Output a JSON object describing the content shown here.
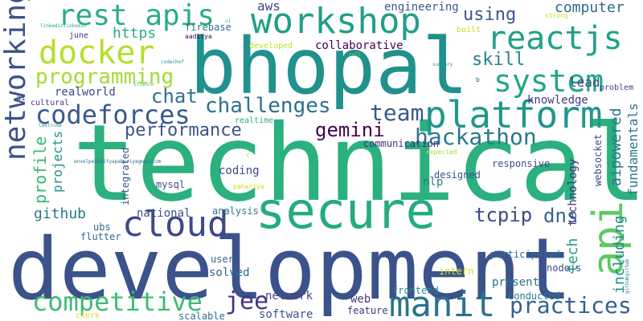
{
  "cloud": {
    "words": [
      {
        "text": "technical",
        "color": "#2bb07f"
      },
      {
        "text": "development",
        "color": "#3b528b"
      },
      {
        "text": "bhopal",
        "color": "#21918c"
      },
      {
        "text": "secure",
        "color": "#25ab82"
      },
      {
        "text": "workshop",
        "color": "#1f9f88"
      },
      {
        "text": "platform",
        "color": "#1f978b"
      },
      {
        "text": "manit",
        "color": "#2c728e"
      },
      {
        "text": "api",
        "color": "#5ec962"
      },
      {
        "text": "cloud",
        "color": "#3e4989"
      },
      {
        "text": "reactjs",
        "color": "#1fa188"
      },
      {
        "text": "codeforces",
        "color": "#38598c"
      },
      {
        "text": "competitive",
        "color": "#3dbc74"
      },
      {
        "text": "docker",
        "color": "#b5de2b"
      },
      {
        "text": "system",
        "color": "#22a785"
      },
      {
        "text": "rest apis",
        "color": "#29af7f"
      },
      {
        "text": "networking",
        "color": "#3b528b"
      },
      {
        "text": "hackathon",
        "color": "#2a788e"
      },
      {
        "text": "jee",
        "color": "#46337e"
      },
      {
        "text": "practices",
        "color": "#34618d"
      },
      {
        "text": "challenges",
        "color": "#2d708e"
      },
      {
        "text": "programming",
        "color": "#a5db36"
      },
      {
        "text": "performance",
        "color": "#3b528b"
      },
      {
        "text": "team",
        "color": "#375a8c"
      },
      {
        "text": "gemini",
        "color": "#440154"
      },
      {
        "text": "tcpip",
        "color": "#3e4989"
      },
      {
        "text": "dns",
        "color": "#32658e"
      },
      {
        "text": "skill",
        "color": "#26828e"
      },
      {
        "text": "using",
        "color": "#39568c"
      },
      {
        "text": "chat",
        "color": "#2c728e"
      },
      {
        "text": "https",
        "color": "#27ad81"
      },
      {
        "text": "computer",
        "color": "#31688e"
      },
      {
        "text": "engineering",
        "color": "#38588c"
      },
      {
        "text": "aws",
        "color": "#3f4788"
      },
      {
        "text": "lead",
        "color": "#3f4788"
      },
      {
        "text": "knowledge",
        "color": "#443a83"
      },
      {
        "text": "realworld",
        "color": "#3e4989"
      },
      {
        "text": "github",
        "color": "#2a788e"
      },
      {
        "text": "profile",
        "color": "#37b878"
      },
      {
        "text": "projects",
        "color": "#21918c"
      },
      {
        "text": "aipowered",
        "color": "#2c728e"
      },
      {
        "text": "fundamentals",
        "color": "#2a788e"
      },
      {
        "text": "including",
        "color": "#23898e"
      },
      {
        "text": "tech",
        "color": "#1f9f88"
      },
      {
        "text": "technology",
        "color": "#46307e"
      },
      {
        "text": "websocket",
        "color": "#3e4989"
      },
      {
        "text": "coding",
        "color": "#404688"
      },
      {
        "text": "mysql",
        "color": "#3b528b"
      },
      {
        "text": "national",
        "color": "#3b528b"
      },
      {
        "text": "analysis",
        "color": "#2a788e"
      },
      {
        "text": "communication",
        "color": "#46307e"
      },
      {
        "text": "collaborative",
        "color": "#440154"
      },
      {
        "text": "integrated",
        "color": "#39568c"
      },
      {
        "text": "designed",
        "color": "#3b528b"
      },
      {
        "text": "responsive",
        "color": "#3e4989"
      },
      {
        "text": "nlp",
        "color": "#287c8e"
      },
      {
        "text": "network",
        "color": "#3f4788"
      },
      {
        "text": "web",
        "color": "#453781"
      },
      {
        "text": "software",
        "color": "#3b528b"
      },
      {
        "text": "solved",
        "color": "#31688e"
      },
      {
        "text": "user",
        "color": "#31688e"
      },
      {
        "text": "present",
        "color": "#2c728e"
      },
      {
        "text": "frontend",
        "color": "#25858e"
      },
      {
        "text": "conducted",
        "color": "#2a788e"
      },
      {
        "text": "feature",
        "color": "#46337e"
      },
      {
        "text": "scalable",
        "color": "#2e6f8e"
      },
      {
        "text": "intern",
        "color": "#d8e219"
      },
      {
        "text": "participated",
        "color": "#31688e"
      },
      {
        "text": "nodejs",
        "color": "#3e4989"
      },
      {
        "text": "ubs",
        "color": "#31688e"
      },
      {
        "text": "flutter",
        "color": "#2c728e"
      },
      {
        "text": "realtime",
        "color": "#27ad81"
      },
      {
        "text": "firebase",
        "color": "#2e6f8e"
      },
      {
        "text": "june",
        "color": "#46337e"
      },
      {
        "text": "aaditya",
        "color": "#440154"
      },
      {
        "text": "developed",
        "color": "#c2df23"
      },
      {
        "text": "built",
        "color": "#c8e020"
      },
      {
        "text": "roll",
        "color": "#7ad151"
      },
      {
        "text": "problem",
        "color": "#414487"
      },
      {
        "text": "strong",
        "color": "#d2e21b"
      },
      {
        "text": "summary",
        "color": "#1f9e89"
      },
      {
        "text": "codechef",
        "color": "#21918c"
      },
      {
        "text": "science",
        "color": "#4ac16d"
      },
      {
        "text": "cultural",
        "color": "#443983"
      },
      {
        "text": "ai",
        "color": "#3e4989"
      },
      {
        "text": "linkedinlinkedin",
        "color": "#22a785"
      },
      {
        "text": "leetcode",
        "color": "#22a785"
      },
      {
        "text": "envelpeaadityapahariyagmailcom",
        "color": "#2e6f8e"
      },
      {
        "text": "expected",
        "color": "#a2da37"
      },
      {
        "text": "pahariya",
        "color": "#c2df23"
      },
      {
        "text": "githubgithub",
        "color": "#277f8e"
      },
      {
        "text": "b",
        "color": "#39568c"
      },
      {
        "text": "c",
        "color": "#b8de29"
      },
      {
        "text": "clerk",
        "color": "#d8e219"
      },
      {
        "text": "ui",
        "color": "#35b779"
      }
    ]
  }
}
